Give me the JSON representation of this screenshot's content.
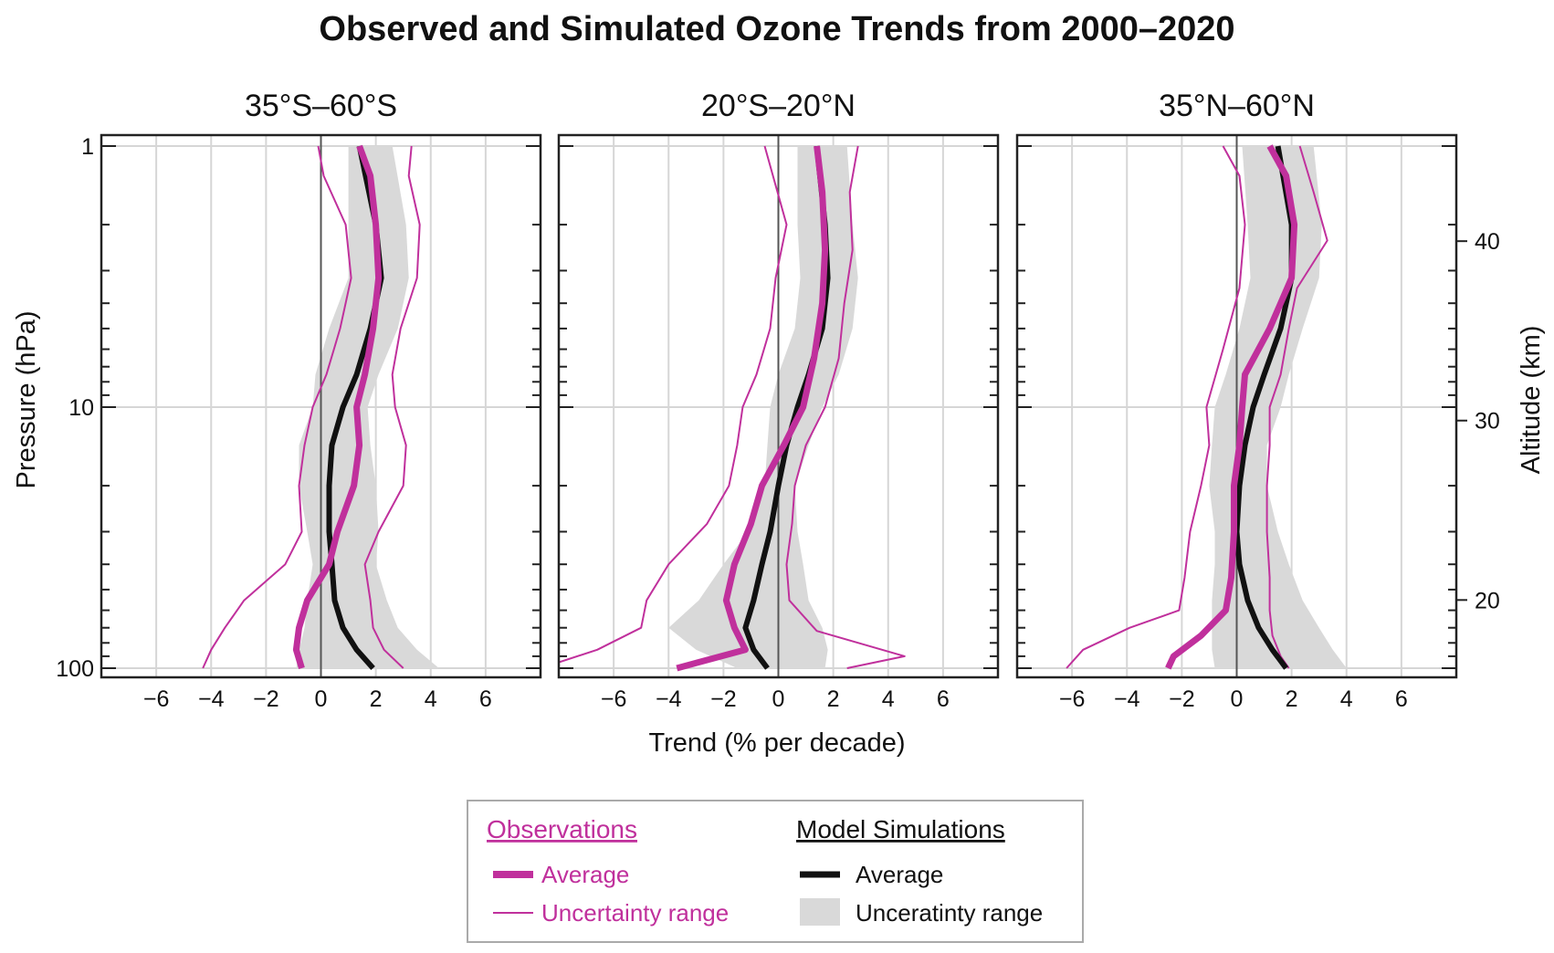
{
  "title": "Observed and Simulated Ozone Trends from 2000–2020",
  "colors": {
    "observations": "#c0309c",
    "model": "#111111",
    "model_band": "#d9d9d9",
    "grid": "#d6d6d6",
    "zero_line": "#555555",
    "frame": "#222222"
  },
  "chart_data": [
    {
      "type": "line",
      "panel_title": "35°S–60°S",
      "xlim": [
        -8,
        8
      ],
      "xticks": [
        -6,
        -4,
        -2,
        0,
        2,
        4,
        6
      ],
      "pressure_ticks": [
        1,
        10,
        100
      ],
      "ylim_pressure_hPa": [
        100,
        1
      ],
      "y_scale": "log",
      "grid": true,
      "series": [
        {
          "name": "Average",
          "group": "Observations",
          "pressure": [
            1.0,
            1.3,
            2.0,
            3.2,
            5.0,
            7.5,
            10.0,
            14.0,
            20.0,
            30.0,
            40.0,
            55.0,
            70.0,
            85.0,
            100.0
          ],
          "values": [
            1.4,
            1.8,
            2.0,
            2.1,
            1.9,
            1.6,
            1.3,
            1.4,
            1.2,
            0.6,
            0.3,
            -0.5,
            -0.8,
            -0.9,
            -0.7
          ]
        },
        {
          "name": "Uncertainty range (lower)",
          "group": "Observations",
          "pressure": [
            1.0,
            1.3,
            2.0,
            3.2,
            5.0,
            7.5,
            10.0,
            14.0,
            20.0,
            30.0,
            40.0,
            55.0,
            70.0,
            85.0,
            100.0
          ],
          "values": [
            -0.1,
            0.1,
            0.9,
            1.1,
            0.7,
            0.2,
            -0.3,
            -0.6,
            -0.8,
            -0.7,
            -1.3,
            -2.8,
            -3.5,
            -4.0,
            -4.3
          ]
        },
        {
          "name": "Uncertainty range (upper)",
          "group": "Observations",
          "pressure": [
            1.0,
            1.3,
            2.0,
            3.2,
            5.0,
            7.5,
            10.0,
            14.0,
            20.0,
            30.0,
            40.0,
            55.0,
            70.0,
            85.0,
            100.0
          ],
          "values": [
            3.3,
            3.2,
            3.6,
            3.5,
            2.9,
            2.6,
            2.7,
            3.1,
            3.0,
            2.1,
            1.6,
            1.8,
            1.9,
            2.3,
            3.0
          ]
        },
        {
          "name": "Average",
          "group": "Model Simulations",
          "pressure": [
            1.0,
            2.0,
            3.2,
            5.0,
            7.5,
            10.0,
            14.0,
            20.0,
            30.0,
            40.0,
            55.0,
            70.0,
            85.0,
            100.0
          ],
          "values": [
            1.4,
            2.0,
            2.2,
            1.8,
            1.3,
            0.8,
            0.4,
            0.3,
            0.3,
            0.4,
            0.5,
            0.8,
            1.3,
            1.9
          ]
        },
        {
          "name": "Uncertaintity range",
          "group": "Model Simulations",
          "pressure": [
            1.0,
            2.0,
            3.2,
            5.0,
            7.5,
            10.0,
            14.0,
            20.0,
            30.0,
            40.0,
            55.0,
            70.0,
            85.0,
            100.0
          ],
          "lower": [
            1.0,
            1.0,
            1.0,
            0.3,
            -0.2,
            -0.3,
            -0.8,
            -0.8,
            -0.5,
            -0.3,
            -0.5,
            -0.6,
            -0.8,
            -0.9
          ],
          "upper": [
            2.6,
            3.1,
            3.2,
            2.8,
            2.1,
            1.7,
            1.8,
            2.0,
            2.1,
            2.0,
            2.4,
            2.8,
            3.5,
            4.3
          ]
        }
      ]
    },
    {
      "type": "line",
      "panel_title": "20°S–20°N",
      "xlim": [
        -8,
        8
      ],
      "xticks": [
        -6,
        -4,
        -2,
        0,
        2,
        4,
        6
      ],
      "pressure_ticks": [
        1,
        10,
        100
      ],
      "ylim_pressure_hPa": [
        100,
        1
      ],
      "y_scale": "log",
      "grid": true,
      "series": [
        {
          "name": "Average",
          "group": "Observations",
          "pressure": [
            1.0,
            1.5,
            2.5,
            4.0,
            6.5,
            10.0,
            14.0,
            20.0,
            28.0,
            40.0,
            55.0,
            70.0,
            85.0,
            100.0
          ],
          "values": [
            1.4,
            1.6,
            1.7,
            1.6,
            1.3,
            0.9,
            0.2,
            -0.6,
            -1.0,
            -1.6,
            -1.9,
            -1.6,
            -1.2,
            -3.7
          ]
        },
        {
          "name": "Uncertainty range (lower)",
          "group": "Observations",
          "pressure": [
            1.0,
            2.0,
            3.2,
            5.0,
            7.5,
            10.0,
            14.0,
            20.0,
            28.0,
            40.0,
            55.0,
            70.0,
            85.0,
            95.0
          ],
          "values": [
            -0.5,
            0.3,
            -0.1,
            -0.3,
            -0.8,
            -1.3,
            -1.5,
            -1.8,
            -2.6,
            -4.0,
            -4.8,
            -5.0,
            -6.6,
            -8.0
          ]
        },
        {
          "name": "Uncertainty range (upper)",
          "group": "Observations",
          "pressure": [
            1.0,
            1.5,
            2.5,
            4.0,
            6.5,
            10.0,
            14.0,
            20.0,
            28.0,
            40.0,
            55.0,
            72.0,
            90.0,
            100.0
          ],
          "values": [
            2.9,
            2.6,
            2.7,
            2.4,
            2.2,
            1.7,
            1.0,
            0.6,
            0.5,
            0.3,
            0.4,
            1.4,
            4.6,
            2.5
          ]
        },
        {
          "name": "Average",
          "group": "Model Simulations",
          "pressure": [
            1.0,
            2.0,
            3.2,
            5.0,
            7.5,
            10.0,
            14.0,
            20.0,
            30.0,
            40.0,
            55.0,
            70.0,
            85.0,
            100.0
          ],
          "values": [
            1.4,
            1.7,
            1.8,
            1.6,
            1.1,
            0.7,
            0.3,
            0.0,
            -0.3,
            -0.6,
            -0.9,
            -1.2,
            -0.9,
            -0.4
          ]
        },
        {
          "name": "Uncertaintity range",
          "group": "Model Simulations",
          "pressure": [
            1.0,
            2.0,
            3.2,
            5.0,
            7.5,
            10.0,
            14.0,
            20.0,
            30.0,
            40.0,
            55.0,
            70.0,
            85.0,
            100.0
          ],
          "lower": [
            0.7,
            0.7,
            0.8,
            0.6,
            0.0,
            -0.3,
            -0.4,
            -0.5,
            -1.1,
            -2.0,
            -2.9,
            -4.0,
            -3.0,
            -1.5
          ],
          "upper": [
            2.5,
            2.7,
            2.9,
            2.7,
            2.2,
            1.6,
            1.1,
            0.6,
            0.7,
            0.9,
            1.1,
            1.6,
            1.8,
            1.7
          ]
        }
      ]
    },
    {
      "type": "line",
      "panel_title": "35°N–60°N",
      "xlim": [
        -8,
        8
      ],
      "xticks": [
        -6,
        -4,
        -2,
        0,
        2,
        4,
        6
      ],
      "pressure_ticks": [
        1,
        10,
        100
      ],
      "ylim_pressure_hPa": [
        100,
        1
      ],
      "y_scale": "log",
      "grid": true,
      "series": [
        {
          "name": "Average",
          "group": "Observations",
          "pressure": [
            1.0,
            1.3,
            2.0,
            3.2,
            5.0,
            7.5,
            10.0,
            14.0,
            20.0,
            30.0,
            45.0,
            60.0,
            75.0,
            90.0,
            100.0
          ],
          "values": [
            1.2,
            1.8,
            2.1,
            2.0,
            1.2,
            0.3,
            0.2,
            0.1,
            -0.1,
            -0.1,
            -0.2,
            -0.4,
            -1.3,
            -2.3,
            -2.5
          ]
        },
        {
          "name": "Uncertainty range (lower)",
          "group": "Observations",
          "pressure": [
            1.0,
            1.3,
            2.0,
            3.5,
            6.0,
            10.0,
            14.0,
            20.0,
            30.0,
            45.0,
            60.0,
            70.0,
            85.0,
            100.0
          ],
          "values": [
            -0.5,
            0.1,
            0.3,
            0.1,
            -0.5,
            -1.1,
            -1.0,
            -1.3,
            -1.7,
            -1.9,
            -2.1,
            -3.9,
            -5.6,
            -6.2
          ]
        },
        {
          "name": "Uncertainty range (upper)",
          "group": "Observations",
          "pressure": [
            1.0,
            1.5,
            2.3,
            3.5,
            5.0,
            7.5,
            10.0,
            14.0,
            20.0,
            30.0,
            45.0,
            60.0,
            75.0,
            90.0,
            100.0
          ],
          "values": [
            2.3,
            2.8,
            3.3,
            2.2,
            1.9,
            1.6,
            1.2,
            1.2,
            1.1,
            1.1,
            1.2,
            1.2,
            1.3,
            1.6,
            1.9
          ]
        },
        {
          "name": "Average",
          "group": "Model Simulations",
          "pressure": [
            1.0,
            2.0,
            3.2,
            5.0,
            7.5,
            10.0,
            14.0,
            20.0,
            30.0,
            40.0,
            55.0,
            70.0,
            85.0,
            100.0
          ],
          "values": [
            1.5,
            2.0,
            2.0,
            1.6,
            1.0,
            0.6,
            0.3,
            0.1,
            0.0,
            0.1,
            0.4,
            0.8,
            1.3,
            1.8
          ]
        },
        {
          "name": "Uncertaintity range",
          "group": "Model Simulations",
          "pressure": [
            1.0,
            2.0,
            3.2,
            5.0,
            7.5,
            10.0,
            14.0,
            20.0,
            30.0,
            40.0,
            55.0,
            70.0,
            85.0,
            100.0
          ],
          "lower": [
            0.2,
            0.4,
            0.5,
            0.1,
            -0.4,
            -0.8,
            -0.9,
            -1.0,
            -0.8,
            -0.8,
            -0.9,
            -0.9,
            -0.9,
            -0.8
          ],
          "upper": [
            2.8,
            3.1,
            3.0,
            2.4,
            1.9,
            1.6,
            1.1,
            1.1,
            1.5,
            1.9,
            2.4,
            3.0,
            3.5,
            4.0
          ]
        }
      ]
    }
  ],
  "axes": {
    "x_title": "Trend (% per decade)",
    "y_left_title": "Pressure  (hPa)",
    "y_right_title": "Altitude  (km)",
    "altitude_ticks": [
      20,
      30,
      40
    ],
    "altitude_km_at_100hPa": 16.2,
    "altitude_km_per_decade_pressure": 14.55
  },
  "legend": {
    "observations_heading": "Observations",
    "model_heading": "Model Simulations",
    "obs_average_label": "Average",
    "obs_range_label": "Uncertainty range",
    "model_average_label": "Average",
    "model_range_label": "Unceratinty range"
  }
}
